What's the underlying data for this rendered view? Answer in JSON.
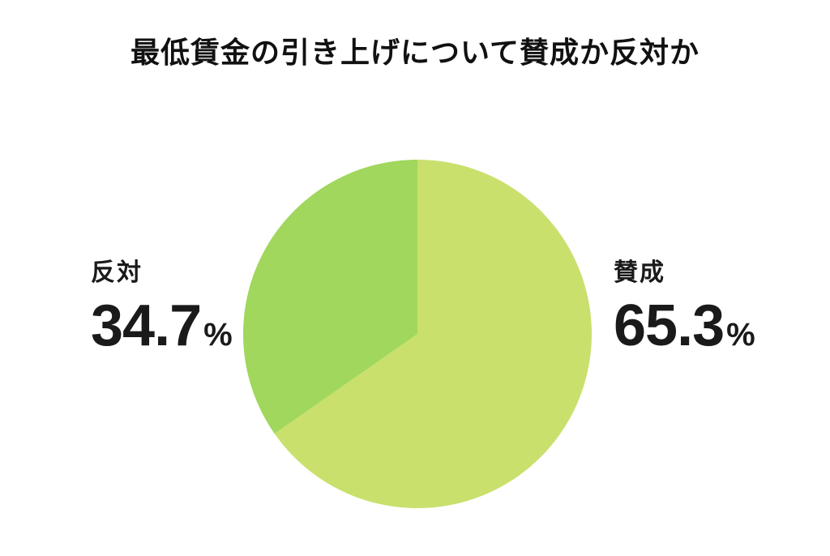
{
  "title": "最低賃金の引き上げについて賛成か反対か",
  "chart_data": {
    "type": "pie",
    "title": "最低賃金の引き上げについて賛成か反対か",
    "start_angle_deg": -90,
    "direction": "clockwise",
    "total": 100,
    "slices": [
      {
        "id": "approve",
        "label": "賛成",
        "value": 65.3,
        "unit": "%",
        "color": "#c9e06d"
      },
      {
        "id": "oppose",
        "label": "反対",
        "value": 34.7,
        "unit": "%",
        "color": "#a0d75c"
      }
    ],
    "legend_position": "sides",
    "background": "#ffffff"
  },
  "labels": {
    "left": {
      "name": "反対",
      "value": "34.7",
      "unit": "%"
    },
    "right": {
      "name": "賛成",
      "value": "65.3",
      "unit": "%"
    }
  }
}
